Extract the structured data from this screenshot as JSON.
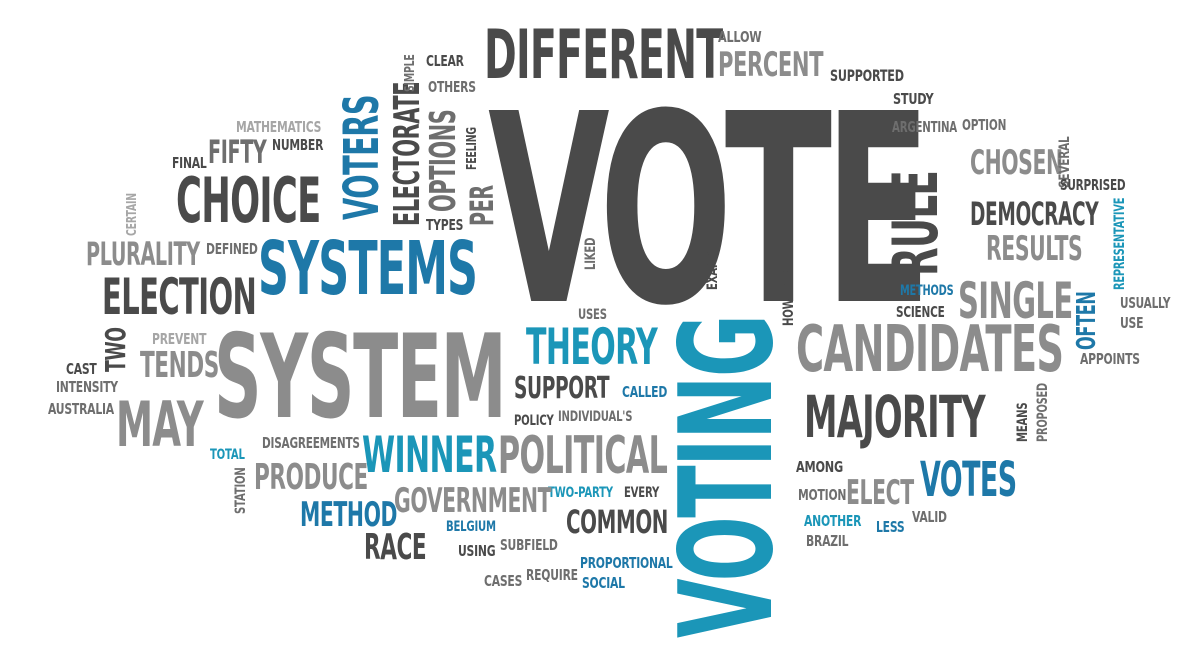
{
  "words": {
    "vote": "VOTE",
    "different": "DIFFERENT",
    "allow": "ALLOW",
    "percent": "PERCENT",
    "supported": "SUPPORTED",
    "study": "STUDY",
    "argentina": "ARGENTINA",
    "option": "OPTION",
    "chosen": "CHOSEN",
    "several": "SEVERAL",
    "surprised": "SURPRISED",
    "democracy": "DEMOCRACY",
    "results": "RESULTS",
    "representative": "REPRESENTATIVE",
    "rule": "RULE",
    "methods": "METHODS",
    "single": "SINGLE",
    "science": "SCIENCE",
    "often": "OFTEN",
    "usually": "USUALLY",
    "use": "USE",
    "appoints": "APPOINTS",
    "candidates": "CANDIDATES",
    "majority": "MAJORITY",
    "means": "MEANS",
    "proposed": "PROPOSED",
    "among": "AMONG",
    "votes": "VOTES",
    "elect": "ELECT",
    "motion": "MOTION",
    "another": "ANOTHER",
    "less": "LESS",
    "valid": "VALID",
    "brazil": "BRAZIL",
    "voting": "VOTING",
    "however": "HOWEVER",
    "example": "EXAMPLE",
    "liked": "LIKED",
    "theory": "THEORY",
    "uses": "USES",
    "support": "SUPPORT",
    "called": "CALLED",
    "policy": "POLICY",
    "individuals": "INDIVIDUAL'S",
    "political": "POLITICAL",
    "two_party": "TWO-PARTY",
    "every": "EVERY",
    "common": "COMMON",
    "government": "GOVERNMENT",
    "winner": "WINNER",
    "disagreements": "DISAGREEMENTS",
    "produce": "PRODUCE",
    "method": "METHOD",
    "belgium": "BELGIUM",
    "using": "USING",
    "subfield": "SUBFIELD",
    "proportional": "PROPORTIONAL",
    "social": "SOCIAL",
    "race": "RACE",
    "cases": "CASES",
    "require": "REQUIRE",
    "station": "STATION",
    "total": "TOTAL",
    "may": "MAY",
    "system": "SYSTEM",
    "tends": "TENDS",
    "prevent": "PREVENT",
    "two": "TWO",
    "cast": "CAST",
    "intensity": "INTENSITY",
    "australia": "AUSTRALIA",
    "election": "ELECTION",
    "plurality": "PLURALITY",
    "defined": "DEFINED",
    "certain": "CERTAIN",
    "choice": "CHOICE",
    "final": "FINAL",
    "fifty": "FIFTY",
    "number": "NUMBER",
    "mathematics": "MATHEMATICS",
    "systems": "SYSTEMS",
    "voters": "VOTERS",
    "electorate": "ELECTORATE",
    "simple": "SIMPLE",
    "clear": "CLEAR",
    "others": "OTHERS",
    "options": "OPTIONS",
    "feeling": "FEELING",
    "per": "PER",
    "types": "TYPES"
  },
  "colors": {
    "dark_gray": "#4a4a4a",
    "mid_gray": "#6e6e6e",
    "light_gray": "#8c8c8c",
    "teal": "#1b96b8",
    "blue": "#1e78a8"
  }
}
